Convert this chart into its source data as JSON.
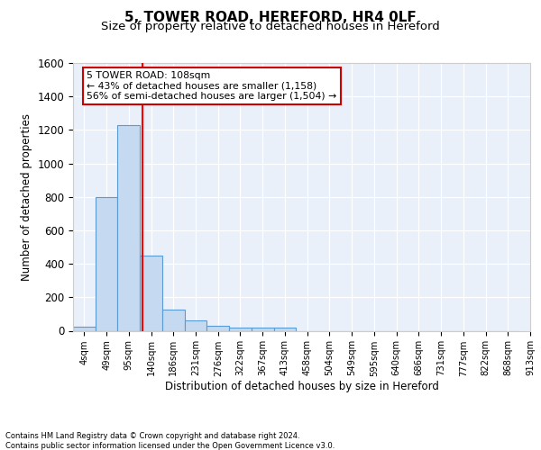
{
  "title": "5, TOWER ROAD, HEREFORD, HR4 0LF",
  "subtitle": "Size of property relative to detached houses in Hereford",
  "xlabel": "Distribution of detached houses by size in Hereford",
  "ylabel": "Number of detached properties",
  "annotation_line1": "5 TOWER ROAD: 108sqm",
  "annotation_line2": "← 43% of detached houses are smaller (1,158)",
  "annotation_line3": "56% of semi-detached houses are larger (1,504) →",
  "footer_line1": "Contains HM Land Registry data © Crown copyright and database right 2024.",
  "footer_line2": "Contains public sector information licensed under the Open Government Licence v3.0.",
  "bin_labels": [
    "4sqm",
    "49sqm",
    "95sqm",
    "140sqm",
    "186sqm",
    "231sqm",
    "276sqm",
    "322sqm",
    "367sqm",
    "413sqm",
    "458sqm",
    "504sqm",
    "549sqm",
    "595sqm",
    "640sqm",
    "686sqm",
    "731sqm",
    "777sqm",
    "822sqm",
    "868sqm",
    "913sqm"
  ],
  "bar_heights": [
    25,
    800,
    1230,
    450,
    125,
    60,
    28,
    20,
    18,
    18,
    0,
    0,
    0,
    0,
    0,
    0,
    0,
    0,
    0,
    0
  ],
  "bar_color": "#c5d9f0",
  "bar_edge_color": "#5b9bd5",
  "red_line_x": 2.6,
  "ylim": [
    0,
    1600
  ],
  "yticks": [
    0,
    200,
    400,
    600,
    800,
    1000,
    1200,
    1400,
    1600
  ],
  "title_fontsize": 11,
  "subtitle_fontsize": 9.5,
  "annotation_box_color": "#ffffff",
  "annotation_box_edge": "#cc0000",
  "background_color": "#eaf0f9"
}
